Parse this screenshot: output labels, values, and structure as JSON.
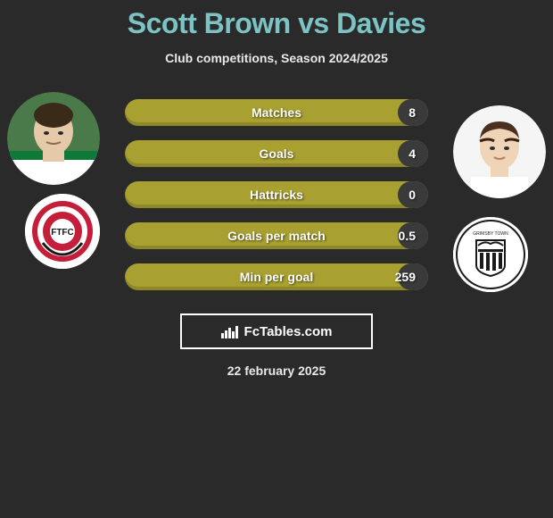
{
  "title": {
    "player1": "Scott Brown",
    "vs": "vs",
    "player2": "Davies",
    "color": "#7cc3c4"
  },
  "subtitle": "Club competitions, Season 2024/2025",
  "bars": {
    "bar_color": "#a8a030",
    "fill_color": "#3a3a3a",
    "text_color": "#ffffff",
    "items": [
      {
        "label": "Matches",
        "value": "8",
        "fill_pct": 10
      },
      {
        "label": "Goals",
        "value": "4",
        "fill_pct": 10
      },
      {
        "label": "Hattricks",
        "value": "0",
        "fill_pct": 10
      },
      {
        "label": "Goals per match",
        "value": "0.5",
        "fill_pct": 10
      },
      {
        "label": "Min per goal",
        "value": "259",
        "fill_pct": 10
      }
    ]
  },
  "brand": {
    "icon": "bar-chart-icon",
    "text": "FcTables.com"
  },
  "date": "22 february 2025",
  "avatars": {
    "left_alt": "Scott Brown",
    "right_alt": "Davies"
  },
  "badges": {
    "left_alt": "Fleetwood Town FC",
    "right_alt": "Grimsby Town FC"
  },
  "colors": {
    "background": "#2a2a2a",
    "subtitle": "#e8e8e8",
    "badge_bg": "#ffffff"
  }
}
